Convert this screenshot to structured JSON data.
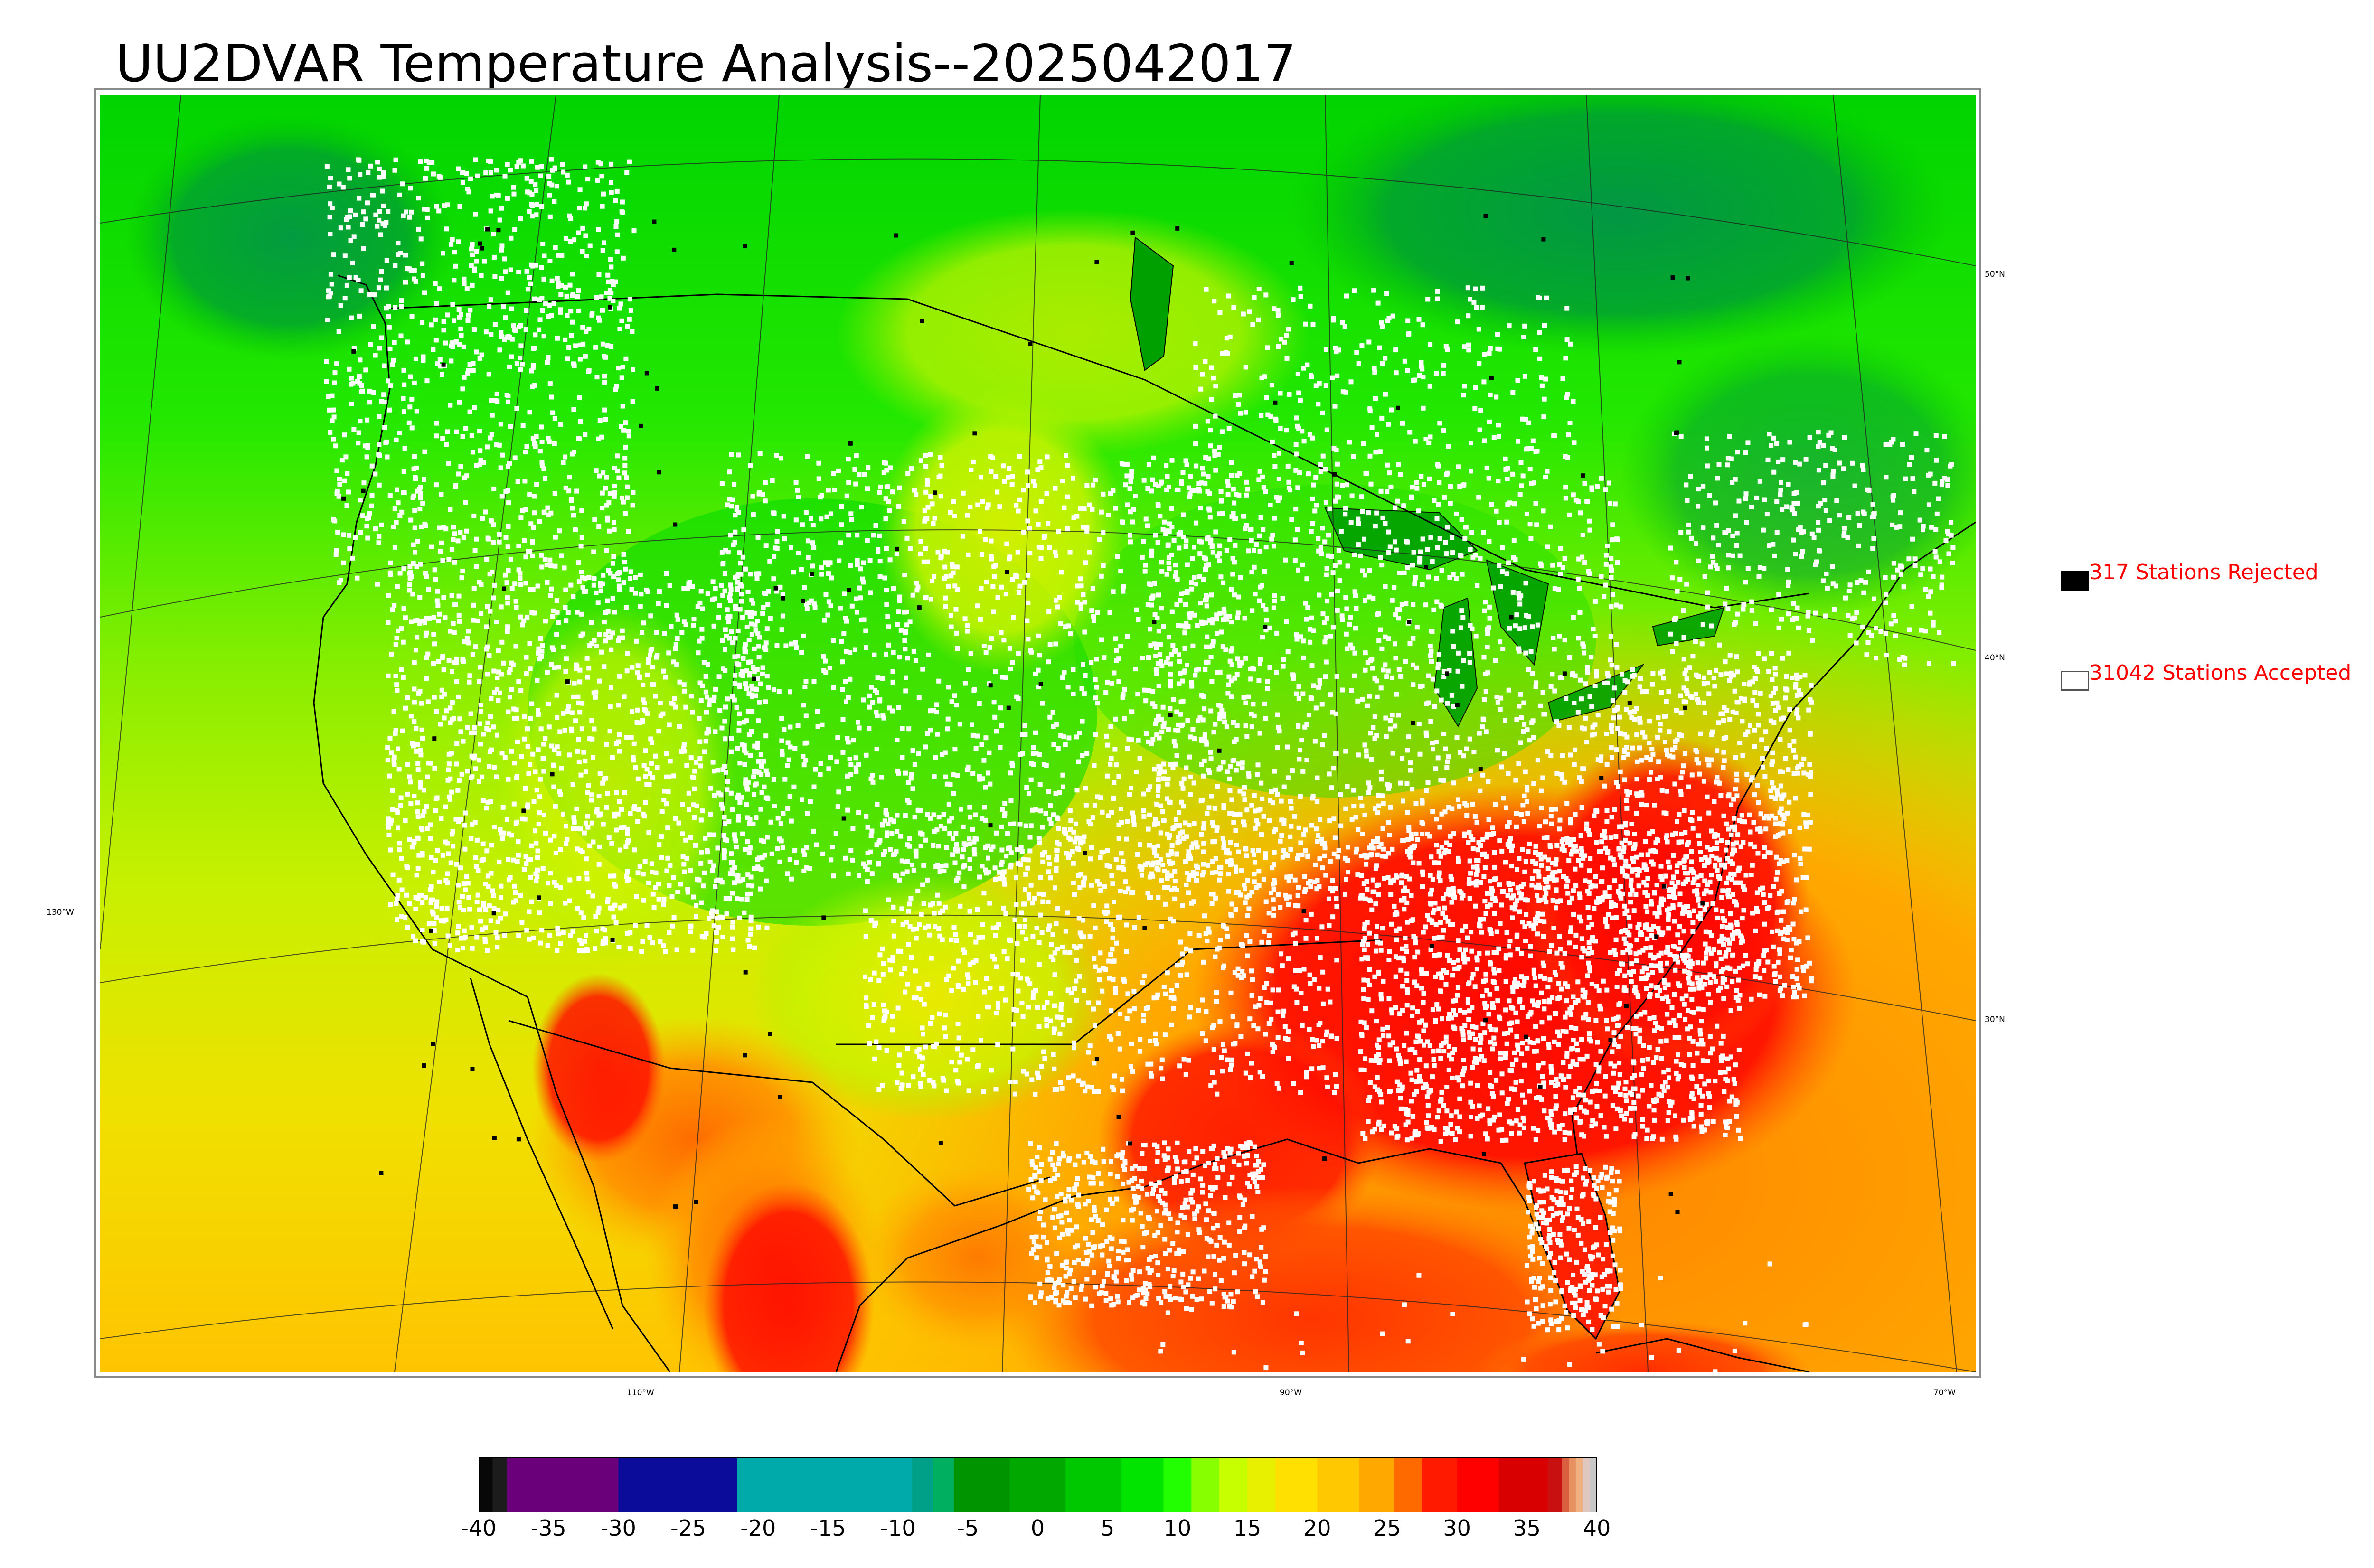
{
  "title": "UU2DVAR Temperature Analysis--2025042017",
  "map": {
    "lat_labels": [
      "50°N",
      "40°N",
      "30°N"
    ],
    "lon_labels": [
      "130°W",
      "110°W",
      "90°W",
      "70°W"
    ]
  },
  "legend": {
    "rejected": {
      "label": "317 Stations Rejected",
      "swatch_color": "#000000"
    },
    "accepted": {
      "label": "31042 Stations Accepted",
      "swatch_color": "#ffffff"
    },
    "text_color": "#ff0000"
  },
  "colorbar": {
    "min": -40,
    "max": 40,
    "ticks": [
      "-40",
      "-35",
      "-30",
      "-25",
      "-20",
      "-15",
      "-10",
      "-5",
      "0",
      "5",
      "10",
      "15",
      "20",
      "25",
      "30",
      "35",
      "40"
    ],
    "segments": [
      {
        "from": -40,
        "to": -39,
        "color": "#080808"
      },
      {
        "from": -39,
        "to": -38,
        "color": "#1c1c1c"
      },
      {
        "from": -38,
        "to": -30,
        "color": "#6b007b"
      },
      {
        "from": -30,
        "to": -21.5,
        "color": "#0c0c9a"
      },
      {
        "from": -21.5,
        "to": -9,
        "color": "#00aaaa"
      },
      {
        "from": -9,
        "to": -7.5,
        "color": "#00a088"
      },
      {
        "from": -7.5,
        "to": -6,
        "color": "#00b060"
      },
      {
        "from": -6,
        "to": -2,
        "color": "#009400"
      },
      {
        "from": -2,
        "to": 2,
        "color": "#00a800"
      },
      {
        "from": 2,
        "to": 6,
        "color": "#00c800"
      },
      {
        "from": 6,
        "to": 9,
        "color": "#00e400"
      },
      {
        "from": 9,
        "to": 11,
        "color": "#22ff00"
      },
      {
        "from": 11,
        "to": 13,
        "color": "#88ff00"
      },
      {
        "from": 13,
        "to": 15,
        "color": "#c8ff00"
      },
      {
        "from": 15,
        "to": 17,
        "color": "#e8f000"
      },
      {
        "from": 17,
        "to": 20,
        "color": "#ffe000"
      },
      {
        "from": 20,
        "to": 23,
        "color": "#ffc800"
      },
      {
        "from": 23,
        "to": 25.5,
        "color": "#ffa800"
      },
      {
        "from": 25.5,
        "to": 27.5,
        "color": "#ff6a00"
      },
      {
        "from": 27.5,
        "to": 30,
        "color": "#ff1a00"
      },
      {
        "from": 30,
        "to": 33,
        "color": "#ff0000"
      },
      {
        "from": 33,
        "to": 36.5,
        "color": "#d80000"
      },
      {
        "from": 36.5,
        "to": 37.5,
        "color": "#c81010"
      },
      {
        "from": 37.5,
        "to": 38,
        "color": "#d86040"
      },
      {
        "from": 38,
        "to": 38.5,
        "color": "#e89060"
      },
      {
        "from": 38.5,
        "to": 39,
        "color": "#f0b080"
      },
      {
        "from": 39,
        "to": 39.5,
        "color": "#e0c8c0"
      },
      {
        "from": 39.5,
        "to": 40,
        "color": "#c8c8c8"
      }
    ]
  }
}
